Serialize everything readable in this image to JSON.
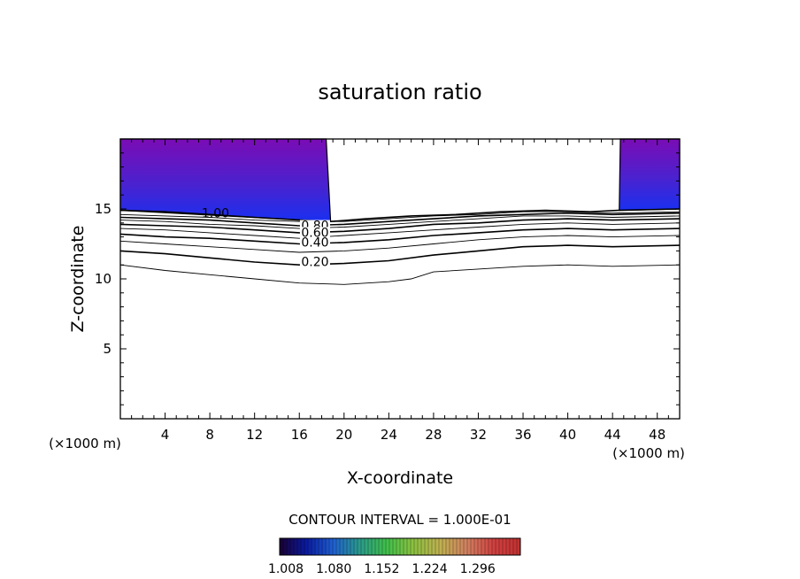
{
  "chart_data": {
    "type": "contour",
    "title": "saturation ratio",
    "xlabel": "X-coordinate",
    "ylabel": "Z-coordinate",
    "x_unit_left": "(×1000 m)",
    "x_unit_right": "(×1000 m)",
    "xlim": [
      0,
      50
    ],
    "ylim": [
      0,
      20
    ],
    "x_ticks": [
      4,
      8,
      12,
      16,
      20,
      24,
      28,
      32,
      36,
      40,
      44,
      48
    ],
    "y_ticks": [
      5,
      10,
      15
    ],
    "contour_interval_text": "CONTOUR INTERVAL = 1.000E-01",
    "contour_levels": [
      0.1,
      0.2,
      0.3,
      0.4,
      0.5,
      0.6,
      0.7,
      0.8,
      0.9,
      1.0
    ],
    "contour_labels": [
      {
        "text": "1.00",
        "x": 8.5,
        "y": 14.6
      },
      {
        "text": "0.80",
        "x": 17.4,
        "y": 13.7
      },
      {
        "text": "0.60",
        "x": 17.4,
        "y": 13.2
      },
      {
        "text": "0.40",
        "x": 17.4,
        "y": 12.5
      },
      {
        "text": "0.20",
        "x": 17.4,
        "y": 11.1
      }
    ],
    "contour_lines": [
      {
        "level": 0.1,
        "points": [
          [
            0,
            11.0
          ],
          [
            4,
            10.6
          ],
          [
            8,
            10.3
          ],
          [
            12,
            10.0
          ],
          [
            16,
            9.7
          ],
          [
            20,
            9.6
          ],
          [
            24,
            9.8
          ],
          [
            26,
            10.0
          ],
          [
            28,
            10.5
          ],
          [
            32,
            10.7
          ],
          [
            36,
            10.9
          ],
          [
            40,
            11.0
          ],
          [
            44,
            10.9
          ],
          [
            50,
            11.0
          ]
        ]
      },
      {
        "level": 0.2,
        "points": [
          [
            0,
            12.0
          ],
          [
            4,
            11.8
          ],
          [
            8,
            11.5
          ],
          [
            12,
            11.2
          ],
          [
            16,
            11.0
          ],
          [
            20,
            11.1
          ],
          [
            24,
            11.3
          ],
          [
            28,
            11.7
          ],
          [
            32,
            12.0
          ],
          [
            36,
            12.3
          ],
          [
            40,
            12.4
          ],
          [
            44,
            12.3
          ],
          [
            50,
            12.4
          ]
        ]
      },
      {
        "level": 0.3,
        "points": [
          [
            0,
            12.7
          ],
          [
            4,
            12.5
          ],
          [
            8,
            12.3
          ],
          [
            12,
            12.1
          ],
          [
            16,
            11.9
          ],
          [
            20,
            12.0
          ],
          [
            24,
            12.2
          ],
          [
            28,
            12.5
          ],
          [
            32,
            12.8
          ],
          [
            36,
            13.0
          ],
          [
            40,
            13.1
          ],
          [
            44,
            13.0
          ],
          [
            50,
            13.1
          ]
        ]
      },
      {
        "level": 0.4,
        "points": [
          [
            0,
            13.2
          ],
          [
            4,
            13.0
          ],
          [
            8,
            12.9
          ],
          [
            12,
            12.7
          ],
          [
            16,
            12.5
          ],
          [
            20,
            12.6
          ],
          [
            24,
            12.8
          ],
          [
            28,
            13.1
          ],
          [
            32,
            13.3
          ],
          [
            36,
            13.5
          ],
          [
            40,
            13.6
          ],
          [
            44,
            13.5
          ],
          [
            50,
            13.6
          ]
        ]
      },
      {
        "level": 0.5,
        "points": [
          [
            0,
            13.6
          ],
          [
            4,
            13.5
          ],
          [
            8,
            13.3
          ],
          [
            12,
            13.1
          ],
          [
            16,
            12.9
          ],
          [
            20,
            13.1
          ],
          [
            24,
            13.3
          ],
          [
            28,
            13.5
          ],
          [
            32,
            13.7
          ],
          [
            36,
            13.9
          ],
          [
            40,
            14.0
          ],
          [
            44,
            13.9
          ],
          [
            50,
            14.0
          ]
        ]
      },
      {
        "level": 0.6,
        "points": [
          [
            0,
            13.9
          ],
          [
            4,
            13.8
          ],
          [
            8,
            13.7
          ],
          [
            12,
            13.5
          ],
          [
            16,
            13.3
          ],
          [
            20,
            13.4
          ],
          [
            24,
            13.6
          ],
          [
            28,
            13.9
          ],
          [
            32,
            14.0
          ],
          [
            36,
            14.2
          ],
          [
            40,
            14.3
          ],
          [
            44,
            14.2
          ],
          [
            50,
            14.3
          ]
        ]
      },
      {
        "level": 0.7,
        "points": [
          [
            0,
            14.2
          ],
          [
            4,
            14.1
          ],
          [
            8,
            13.9
          ],
          [
            12,
            13.8
          ],
          [
            16,
            13.6
          ],
          [
            20,
            13.7
          ],
          [
            24,
            13.9
          ],
          [
            28,
            14.1
          ],
          [
            32,
            14.3
          ],
          [
            36,
            14.5
          ],
          [
            40,
            14.5
          ],
          [
            44,
            14.4
          ],
          [
            50,
            14.5
          ]
        ]
      },
      {
        "level": 0.8,
        "points": [
          [
            0,
            14.4
          ],
          [
            4,
            14.3
          ],
          [
            8,
            14.2
          ],
          [
            12,
            14.0
          ],
          [
            16,
            13.8
          ],
          [
            20,
            13.9
          ],
          [
            24,
            14.1
          ],
          [
            28,
            14.3
          ],
          [
            32,
            14.5
          ],
          [
            36,
            14.6
          ],
          [
            40,
            14.7
          ],
          [
            44,
            14.6
          ],
          [
            50,
            14.7
          ]
        ]
      },
      {
        "level": 0.9,
        "points": [
          [
            0,
            14.6
          ],
          [
            4,
            14.5
          ],
          [
            8,
            14.4
          ],
          [
            12,
            14.2
          ],
          [
            16,
            14.1
          ],
          [
            20,
            14.1
          ],
          [
            24,
            14.3
          ],
          [
            28,
            14.5
          ],
          [
            32,
            14.6
          ],
          [
            36,
            14.8
          ],
          [
            40,
            14.8
          ],
          [
            44,
            14.7
          ],
          [
            50,
            14.8
          ]
        ]
      },
      {
        "level": 1.0,
        "points": [
          [
            0,
            14.9
          ],
          [
            4,
            14.8
          ],
          [
            8,
            14.6
          ],
          [
            12,
            14.4
          ],
          [
            16,
            14.2
          ],
          [
            18.8,
            14.1
          ],
          [
            22,
            14.3
          ],
          [
            26,
            14.5
          ],
          [
            30,
            14.6
          ],
          [
            34,
            14.8
          ],
          [
            38,
            14.9
          ],
          [
            42,
            14.8
          ],
          [
            44.5,
            14.9
          ],
          [
            50,
            15.0
          ]
        ]
      }
    ],
    "filled_regions": [
      {
        "x_range": [
          0,
          18.5
        ],
        "z_bottom_left": 14.9,
        "z_bottom_right": 14.1,
        "x_edge_top": 18.4,
        "x_edge_bottom": 18.8
      },
      {
        "x_range": [
          44.7,
          50
        ],
        "z_bottom_left": 14.9,
        "z_bottom_right": 15.0,
        "x_edge_top": 44.7,
        "x_edge_bottom": 44.6
      }
    ],
    "colorbar": {
      "tick_labels": [
        "1.008",
        "1.080",
        "1.152",
        "1.224",
        "1.296"
      ],
      "colors": [
        "#1a0033",
        "#0a1aa0",
        "#1f5fd0",
        "#2a9a8a",
        "#3fbf4a",
        "#8cc040",
        "#c0b050",
        "#d08060",
        "#d04040",
        "#c03030"
      ]
    },
    "fill_colors": {
      "high": "#7a0cb5",
      "mid": "#4a22cf",
      "low": "#1a30f0"
    }
  }
}
